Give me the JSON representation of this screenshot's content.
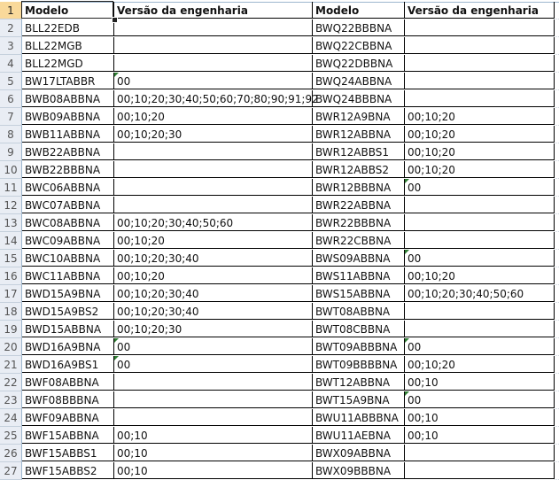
{
  "headers": {
    "row_number": "1",
    "col_a": "Modelo",
    "col_b": "Versão da engenharia",
    "col_c": "Modelo",
    "col_d": "Versão da engenharia"
  },
  "flag_color": "#2e7d32",
  "selected_cell": "A1",
  "rows": [
    {
      "n": "2",
      "a": "BLL22EDB",
      "b": "",
      "c": "BWQ22BBBNA",
      "d": ""
    },
    {
      "n": "3",
      "a": "BLL22MGB",
      "b": "",
      "c": "BWQ22CBBNA",
      "d": ""
    },
    {
      "n": "4",
      "a": "BLL22MGD",
      "b": "",
      "c": "BWQ22DBBNA",
      "d": ""
    },
    {
      "n": "5",
      "a": "BW17LTABBR",
      "b": "00",
      "b_flag": true,
      "c": "BWQ24ABBNA",
      "d": ""
    },
    {
      "n": "6",
      "a": "BWB08ABBNA",
      "b": "00;10;20;30;40;50;60;70;80;90;91;92",
      "c": "BWQ24BBBNA",
      "d": ""
    },
    {
      "n": "7",
      "a": "BWB09ABBNA",
      "b": "00;10;20",
      "c": "BWR12A9BNA",
      "d": "00;10;20"
    },
    {
      "n": "8",
      "a": "BWB11ABBNA",
      "b": "00;10;20;30",
      "c": "BWR12ABBNA",
      "d": "00;10;20"
    },
    {
      "n": "9",
      "a": "BWB22ABBNA",
      "b": "",
      "c": "BWR12ABBS1",
      "d": "00;10;20"
    },
    {
      "n": "10",
      "a": "BWB22BBBNA",
      "b": "",
      "c": "BWR12ABBS2",
      "d": "00;10;20"
    },
    {
      "n": "11",
      "a": "BWC06ABBNA",
      "b": "",
      "c": "BWR12BBBNA",
      "d": "00",
      "d_flag": true
    },
    {
      "n": "12",
      "a": "BWC07ABBNA",
      "b": "",
      "c": "BWR22ABBNA",
      "d": ""
    },
    {
      "n": "13",
      "a": "BWC08ABBNA",
      "b": "00;10;20;30;40;50;60",
      "c": "BWR22BBBNA",
      "d": ""
    },
    {
      "n": "14",
      "a": "BWC09ABBNA",
      "b": "00;10;20",
      "c": "BWR22CBBNA",
      "d": ""
    },
    {
      "n": "15",
      "a": "BWC10ABBNA",
      "b": "00;10;20;30;40",
      "c": "BWS09ABBNA",
      "d": "00",
      "d_flag": true
    },
    {
      "n": "16",
      "a": "BWC11ABBNA",
      "b": "00;10;20",
      "c": "BWS11ABBNA",
      "d": "00;10;20"
    },
    {
      "n": "17",
      "a": "BWD15A9BNA",
      "b": "00;10;20;30;40",
      "c": "BWS15ABBNA",
      "d": "00;10;20;30;40;50;60"
    },
    {
      "n": "18",
      "a": "BWD15A9BS2",
      "b": "00;10;20;30;40",
      "c": "BWT08ABBNA",
      "d": ""
    },
    {
      "n": "19",
      "a": "BWD15ABBNA",
      "b": "00;10;20;30",
      "c": "BWT08CBBNA",
      "d": ""
    },
    {
      "n": "20",
      "a": "BWD16A9BNA",
      "b": "00",
      "b_flag": true,
      "c": "BWT09ABBBNA",
      "d": "00",
      "d_flag": true
    },
    {
      "n": "21",
      "a": "BWD16A9BS1",
      "b": "00",
      "b_flag": true,
      "c": "BWT09BBBBNA",
      "d": "00;10;20"
    },
    {
      "n": "22",
      "a": "BWF08ABBNA",
      "b": "",
      "c": "BWT12ABBNA",
      "d": "00;10"
    },
    {
      "n": "23",
      "a": "BWF08BBBNA",
      "b": "",
      "c": "BWT15A9BNA",
      "d": "00",
      "d_flag": true
    },
    {
      "n": "24",
      "a": "BWF09ABBNA",
      "b": "",
      "c": "BWU11ABBBNA",
      "d": "00;10"
    },
    {
      "n": "25",
      "a": "BWF15ABBNA",
      "b": "00;10",
      "c": "BWU11AEBNA",
      "d": "00;10"
    },
    {
      "n": "26",
      "a": "BWF15ABBS1",
      "b": "00;10",
      "c": "BWX09ABBNA",
      "d": ""
    },
    {
      "n": "27",
      "a": "BWF15ABBS2",
      "b": "00;10",
      "c": "BWX09BBBNA",
      "d": ""
    }
  ]
}
